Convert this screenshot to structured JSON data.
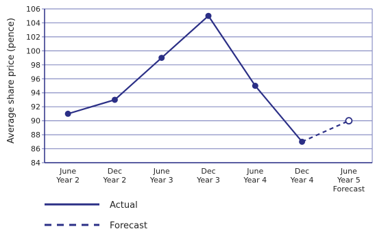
{
  "chart_data": {
    "type": "line",
    "title": "",
    "ylabel": "Average share price (pence)",
    "xlabel": "",
    "categories": [
      "June Year 2",
      "Dec Year 2",
      "June Year 3",
      "Dec Year 3",
      "June Year 4",
      "Dec Year 4",
      "June Year 5 Forecast"
    ],
    "category_label_lines": [
      [
        "June",
        "Year 2"
      ],
      [
        "Dec",
        "Year 2"
      ],
      [
        "June",
        "Year 3"
      ],
      [
        "Dec",
        "Year 3"
      ],
      [
        "June",
        "Year 4"
      ],
      [
        "Dec",
        "Year 4"
      ],
      [
        "June",
        "Year 5",
        "Forecast"
      ]
    ],
    "ylim": [
      84,
      106
    ],
    "yticks": [
      84,
      86,
      88,
      90,
      92,
      94,
      96,
      98,
      100,
      102,
      104,
      106
    ],
    "grid": true,
    "legend_position": "bottom-left",
    "series": [
      {
        "name": "Actual",
        "style": "solid",
        "values": [
          91,
          93,
          99,
          105,
          95,
          87,
          null
        ]
      },
      {
        "name": "Forecast",
        "style": "dashed",
        "values": [
          null,
          null,
          null,
          null,
          null,
          87,
          90
        ]
      }
    ],
    "colors": {
      "line": "#2b2f86",
      "grid": "#8a8fc4",
      "axis": "#2b2f86"
    }
  }
}
